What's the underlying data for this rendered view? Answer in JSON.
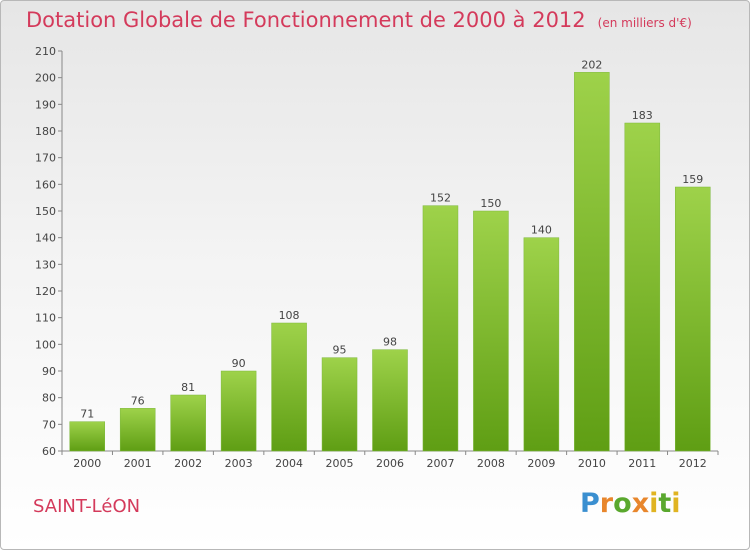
{
  "title": "Dotation Globale de Fonctionnement de 2000 à 2012",
  "unit": "(en milliers d'€)",
  "town": "SAINT-LéON",
  "logo": {
    "text": "Proxiti"
  },
  "colors": {
    "title": "#d43a5b",
    "bar_top": "#9ed24a",
    "bar_bottom": "#5f9e14",
    "axis": "#888888"
  },
  "chart_data": {
    "type": "bar",
    "categories": [
      "2000",
      "2001",
      "2002",
      "2003",
      "2004",
      "2005",
      "2006",
      "2007",
      "2008",
      "2009",
      "2010",
      "2011",
      "2012"
    ],
    "values": [
      71,
      76,
      81,
      90,
      108,
      95,
      98,
      152,
      150,
      140,
      202,
      183,
      159
    ],
    "ylim": [
      60,
      210
    ],
    "yticks": [
      60,
      70,
      80,
      90,
      100,
      110,
      120,
      130,
      140,
      150,
      160,
      170,
      180,
      190,
      200,
      210
    ],
    "grid": false,
    "data_labels": true
  }
}
